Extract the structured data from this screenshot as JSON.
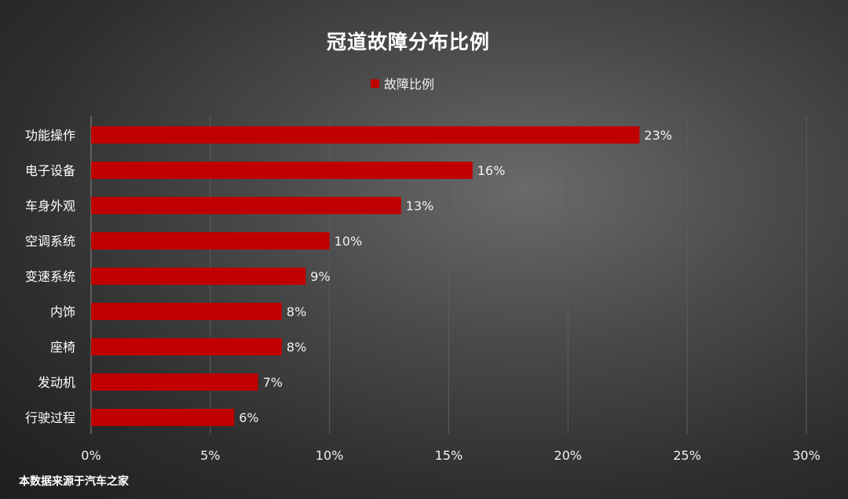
{
  "chart_data": {
    "type": "bar",
    "orientation": "horizontal",
    "title": "冠道故障分布比例",
    "categories": [
      "功能操作",
      "电子设备",
      "车身外观",
      "空调系统",
      "变速系统",
      "内饰",
      "座椅",
      "发动机",
      "行驶过程"
    ],
    "series": [
      {
        "name": "故障比例",
        "values": [
          23,
          16,
          13,
          10,
          9,
          8,
          8,
          7,
          6
        ],
        "labels": [
          "23%",
          "16%",
          "13%",
          "10%",
          "9%",
          "8%",
          "8%",
          "7%",
          "6%"
        ],
        "color": "#c00000"
      }
    ],
    "xlim": [
      0,
      30
    ],
    "xticks": [
      0,
      5,
      10,
      15,
      20,
      25,
      30
    ],
    "xtick_labels": [
      "0%",
      "5%",
      "10%",
      "15%",
      "20%",
      "25%",
      "30%"
    ],
    "grid": "vertical",
    "legend": "top"
  },
  "footer": {
    "source": "本数据来源于汽车之家"
  },
  "colors": {
    "bar": "#c00000",
    "text": "#ffffff",
    "grid": "#5c5c5c"
  }
}
